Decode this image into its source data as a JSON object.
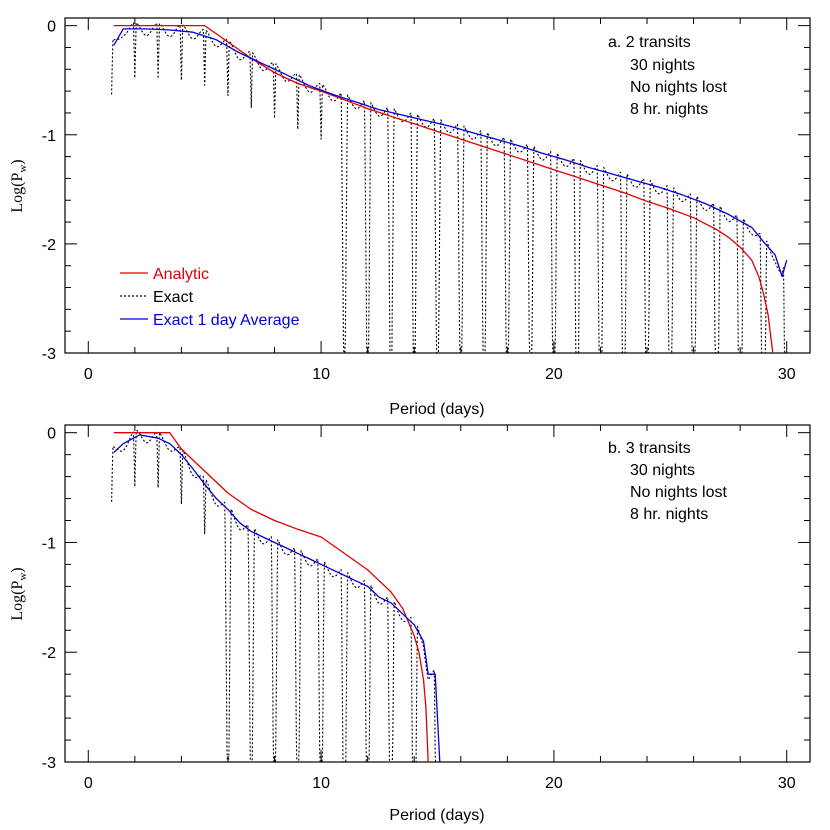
{
  "chart_data": [
    {
      "type": "line",
      "panel_label": "a. 2 transits",
      "annotations": [
        "30 nights",
        "No nights lost",
        "8 hr. nights"
      ],
      "xlabel": "Period (days)",
      "ylabel": "Log(P",
      "ylabel_sub": "w",
      "ylabel_close": ")",
      "xlim": [
        -1,
        31
      ],
      "ylim": [
        -3,
        0.07
      ],
      "xticks": [
        0,
        10,
        20,
        30
      ],
      "yticks": [
        0,
        -1,
        -2,
        -3
      ],
      "xtick_labels": [
        "0",
        "10",
        "20",
        "30"
      ],
      "ytick_labels": [
        "0",
        "-1",
        "-2",
        "-3"
      ],
      "legend_position": "bottom-left",
      "exact_params": {
        "x_start": 1.0,
        "x_end": 30.0,
        "dips_from_x": 10.3
      },
      "series": [
        {
          "name": "Analytic",
          "color": "#e00000",
          "style": "solid",
          "x": [
            1.1,
            5.0,
            6.0,
            7.0,
            8.0,
            9.0,
            10.0,
            11.0,
            12.0,
            13.0,
            14.0,
            15.0,
            16.0,
            17.0,
            18.0,
            19.0,
            20.0,
            21.0,
            22.0,
            23.0,
            24.0,
            25.0,
            26.0,
            27.0,
            27.5,
            28.0,
            28.5,
            28.8,
            29.0,
            29.2,
            29.4
          ],
          "y": [
            0.0,
            0.0,
            -0.15,
            -0.3,
            -0.43,
            -0.53,
            -0.6,
            -0.68,
            -0.76,
            -0.83,
            -0.9,
            -0.97,
            -1.04,
            -1.11,
            -1.18,
            -1.25,
            -1.32,
            -1.39,
            -1.46,
            -1.53,
            -1.61,
            -1.68,
            -1.76,
            -1.87,
            -1.94,
            -2.03,
            -2.15,
            -2.3,
            -2.45,
            -2.65,
            -3.0
          ]
        },
        {
          "name": "Exact",
          "color": "#000000",
          "style": "dotted",
          "x": [],
          "y": []
        },
        {
          "name": "Exact 1 day Average",
          "color": "#0000dd",
          "style": "solid",
          "x": [
            1.1,
            1.5,
            2.5,
            3.5,
            4.5,
            5.5,
            6.5,
            7.5,
            8.5,
            9.5,
            10.5,
            11.5,
            12.5,
            13.5,
            14.5,
            15.5,
            16.5,
            17.5,
            18.5,
            19.5,
            20.5,
            21.5,
            22.5,
            23.5,
            24.5,
            25.5,
            26.5,
            27.5,
            28.5,
            29.0,
            29.5,
            29.8,
            30.0
          ],
          "y": [
            -0.18,
            -0.03,
            -0.03,
            -0.04,
            -0.06,
            -0.13,
            -0.25,
            -0.35,
            -0.45,
            -0.55,
            -0.63,
            -0.7,
            -0.77,
            -0.82,
            -0.87,
            -0.92,
            -0.98,
            -1.04,
            -1.1,
            -1.17,
            -1.23,
            -1.3,
            -1.36,
            -1.42,
            -1.48,
            -1.55,
            -1.63,
            -1.73,
            -1.85,
            -1.98,
            -2.1,
            -2.3,
            -2.15
          ]
        }
      ]
    },
    {
      "type": "line",
      "panel_label": "b. 3 transits",
      "annotations": [
        "30 nights",
        "No nights lost",
        "8 hr. nights"
      ],
      "xlabel": "Period (days)",
      "ylabel": "Log(P",
      "ylabel_sub": "w",
      "ylabel_close": ")",
      "xlim": [
        -1,
        31
      ],
      "ylim": [
        -3,
        0.07
      ],
      "xticks": [
        0,
        10,
        20,
        30
      ],
      "yticks": [
        0,
        -1,
        -2,
        -3
      ],
      "xtick_labels": [
        "0",
        "10",
        "20",
        "30"
      ],
      "ytick_labels": [
        "0",
        "-1",
        "-2",
        "-3"
      ],
      "exact_params": {
        "x_start": 1.0,
        "x_end": 15.0,
        "dips_from_x": 5.8
      },
      "series": [
        {
          "name": "Analytic",
          "color": "#e00000",
          "style": "solid",
          "x": [
            1.1,
            3.5,
            4.0,
            5.0,
            6.0,
            7.0,
            8.0,
            9.0,
            10.0,
            11.0,
            12.0,
            13.0,
            13.5,
            14.0,
            14.2,
            14.4,
            14.5,
            14.6
          ],
          "y": [
            0.0,
            0.0,
            -0.15,
            -0.35,
            -0.55,
            -0.7,
            -0.8,
            -0.88,
            -0.95,
            -1.1,
            -1.25,
            -1.45,
            -1.6,
            -1.85,
            -2.0,
            -2.25,
            -2.5,
            -3.0
          ]
        },
        {
          "name": "Exact",
          "color": "#000000",
          "style": "dotted",
          "x": [],
          "y": []
        },
        {
          "name": "Exact 1 day Average",
          "color": "#0000dd",
          "style": "solid",
          "x": [
            1.1,
            1.5,
            2.2,
            3.0,
            3.5,
            4.0,
            4.5,
            5.0,
            5.5,
            6.0,
            6.5,
            7.0,
            7.5,
            8.0,
            8.5,
            9.0,
            9.5,
            10.0,
            10.5,
            11.0,
            11.5,
            12.0,
            12.5,
            13.0,
            13.5,
            14.0,
            14.4,
            14.5,
            14.6,
            14.9,
            15.0,
            15.1
          ],
          "y": [
            -0.18,
            -0.1,
            -0.02,
            -0.05,
            -0.1,
            -0.2,
            -0.33,
            -0.47,
            -0.6,
            -0.7,
            -0.82,
            -0.9,
            -0.95,
            -1.0,
            -1.05,
            -1.1,
            -1.15,
            -1.2,
            -1.25,
            -1.3,
            -1.35,
            -1.4,
            -1.5,
            -1.55,
            -1.65,
            -1.75,
            -1.9,
            -2.05,
            -2.2,
            -2.2,
            -2.6,
            -3.0
          ]
        }
      ]
    }
  ]
}
